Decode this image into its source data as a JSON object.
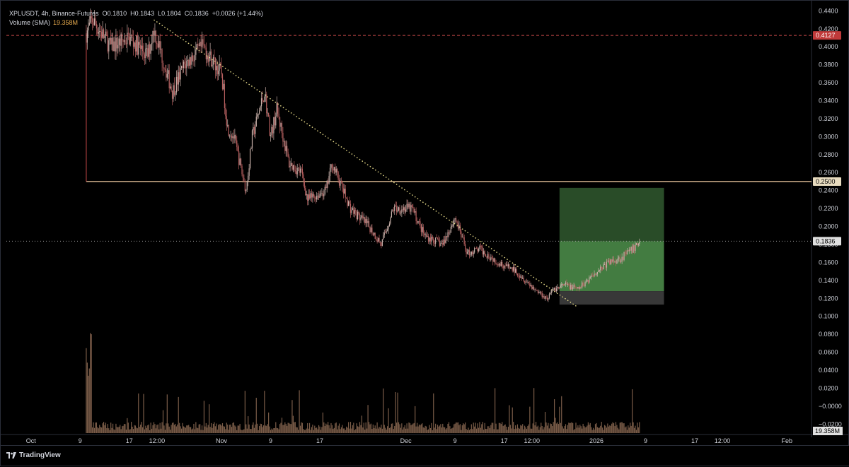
{
  "legend": {
    "symbol_line": "XPLUSDT, 4h, Binance-Futures",
    "open": "O0.1810",
    "high": "H0.1843",
    "low": "L0.1804",
    "close": "C0.1836",
    "change": "+0.0026 (+1.44%)",
    "volume_label": "Volume (SMA)",
    "volume_value": "19.358M"
  },
  "brand": "TradingView",
  "price_axis": {
    "ticks": [
      "0.4400",
      "0.4200",
      "0.4000",
      "0.3800",
      "0.3600",
      "0.3400",
      "0.3200",
      "0.3000",
      "0.2800",
      "0.2600",
      "0.2400",
      "0.2200",
      "0.2000",
      "0.1800",
      "0.1600",
      "0.1400",
      "0.1200",
      "0.1000",
      "0.0800",
      "0.0600",
      "0.0400",
      "0.0200",
      "−0.0000",
      "−0.0200"
    ],
    "labels": {
      "level_top": "0.4127",
      "level_support": "0.2500",
      "last_price": "0.1836",
      "volume": "19.358M"
    }
  },
  "time_axis": {
    "ticks": [
      "Oct",
      "9",
      "17",
      "12:00",
      "Nov",
      "9",
      "17",
      "Dec",
      "9",
      "17",
      "12:00",
      "2026",
      "9",
      "17",
      "12:00",
      "Feb"
    ]
  },
  "colors": {
    "background": "#000000",
    "candle": "#c9b1aa",
    "candle_down": "#b86060",
    "trendline": "#e8dc8a",
    "support_line": "#e5c39a",
    "top_line": "#c84a4a",
    "last_price_line": "#9e9e9e",
    "profit_zone": "#4a8a48",
    "loss_zone": "#3b3b3b",
    "volume": "#7a5c48"
  },
  "chart_data": {
    "type": "candlestick",
    "symbol": "XPLUSDT",
    "interval": "4h",
    "exchange": "Binance-Futures",
    "ylim": [
      -0.03,
      0.445
    ],
    "xlim": [
      "2025-09-27",
      "2026-02-05"
    ],
    "price_path": [
      {
        "date": "2025-10-10",
        "price": 0.415
      },
      {
        "date": "2025-10-11",
        "price": 0.43
      },
      {
        "date": "2025-10-14",
        "price": 0.4
      },
      {
        "date": "2025-10-17",
        "price": 0.41
      },
      {
        "date": "2025-10-20",
        "price": 0.39
      },
      {
        "date": "2025-10-21",
        "price": 0.42
      },
      {
        "date": "2025-10-24",
        "price": 0.35
      },
      {
        "date": "2025-10-26",
        "price": 0.38
      },
      {
        "date": "2025-10-29",
        "price": 0.4
      },
      {
        "date": "2025-11-01",
        "price": 0.37
      },
      {
        "date": "2025-11-02",
        "price": 0.31
      },
      {
        "date": "2025-11-03",
        "price": 0.3
      },
      {
        "date": "2025-11-05",
        "price": 0.24
      },
      {
        "date": "2025-11-06",
        "price": 0.3
      },
      {
        "date": "2025-11-08",
        "price": 0.35
      },
      {
        "date": "2025-11-09",
        "price": 0.3
      },
      {
        "date": "2025-11-10",
        "price": 0.33
      },
      {
        "date": "2025-11-12",
        "price": 0.27
      },
      {
        "date": "2025-11-14",
        "price": 0.26
      },
      {
        "date": "2025-11-15",
        "price": 0.23
      },
      {
        "date": "2025-11-18",
        "price": 0.24
      },
      {
        "date": "2025-11-19",
        "price": 0.27
      },
      {
        "date": "2025-11-22",
        "price": 0.22
      },
      {
        "date": "2025-11-25",
        "price": 0.2
      },
      {
        "date": "2025-11-27",
        "price": 0.18
      },
      {
        "date": "2025-11-29",
        "price": 0.22
      },
      {
        "date": "2025-12-02",
        "price": 0.22
      },
      {
        "date": "2025-12-04",
        "price": 0.19
      },
      {
        "date": "2025-12-07",
        "price": 0.18
      },
      {
        "date": "2025-12-09",
        "price": 0.21
      },
      {
        "date": "2025-12-11",
        "price": 0.17
      },
      {
        "date": "2025-12-13",
        "price": 0.175
      },
      {
        "date": "2025-12-16",
        "price": 0.16
      },
      {
        "date": "2025-12-19",
        "price": 0.15
      },
      {
        "date": "2025-12-22",
        "price": 0.13
      },
      {
        "date": "2025-12-24",
        "price": 0.12
      },
      {
        "date": "2025-12-25",
        "price": 0.13
      },
      {
        "date": "2025-12-27",
        "price": 0.135
      },
      {
        "date": "2025-12-29",
        "price": 0.13
      },
      {
        "date": "2026-01-01",
        "price": 0.15
      },
      {
        "date": "2026-01-03",
        "price": 0.16
      },
      {
        "date": "2026-01-05",
        "price": 0.165
      },
      {
        "date": "2026-01-07",
        "price": 0.175
      },
      {
        "date": "2026-01-08",
        "price": 0.1836
      }
    ],
    "trendline": {
      "start": {
        "date": "2025-10-21",
        "price": 0.43
      },
      "end": {
        "date": "2025-12-29",
        "price": 0.11
      }
    },
    "horizontal_levels": [
      {
        "price": 0.4127,
        "style": "dashed"
      },
      {
        "price": 0.25,
        "style": "solid",
        "from_date": "2025-10-10"
      }
    ],
    "position": {
      "type": "long",
      "from_date": "2025-12-26",
      "to_date": "2026-01-12",
      "entry": 0.128,
      "target": 0.243,
      "stop": 0.113
    },
    "last_price": 0.1836,
    "volume_sma": "19.358M"
  }
}
